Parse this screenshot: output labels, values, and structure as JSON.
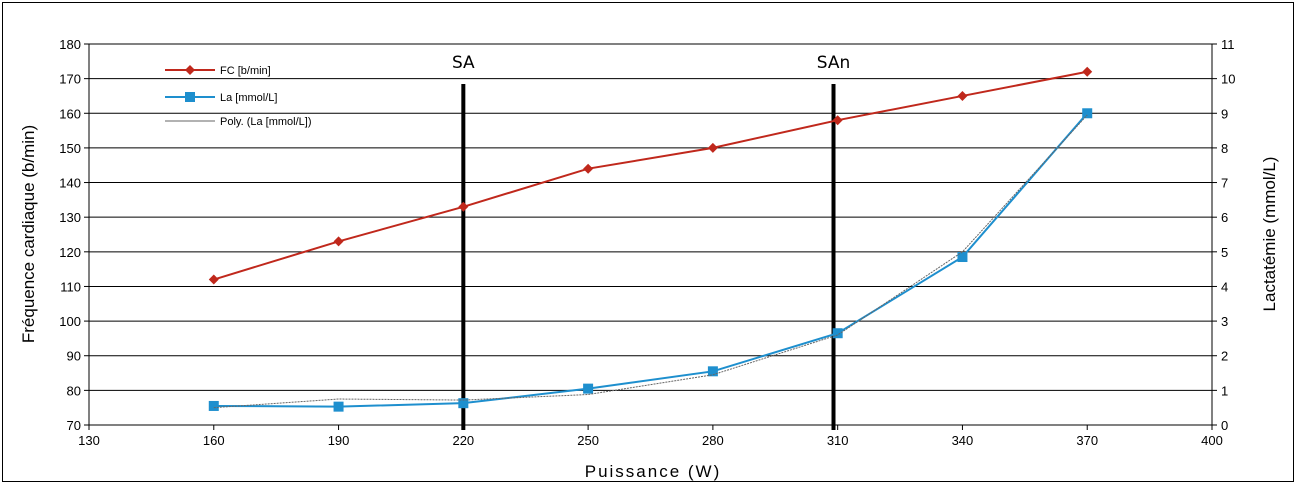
{
  "chart_data": {
    "type": "line",
    "xlabel": "Puissance (W)",
    "ylabel_left": "Fréquence cardiaque (b/min)",
    "ylabel_right": "Lactatémie (mmol/L)",
    "xlim": [
      130,
      400
    ],
    "ylim_left": [
      70,
      180
    ],
    "ylim_right": [
      0,
      11
    ],
    "x_ticks": [
      130,
      160,
      190,
      220,
      250,
      280,
      310,
      340,
      370,
      400
    ],
    "y_left_ticks": [
      70,
      80,
      90,
      100,
      110,
      120,
      130,
      140,
      150,
      160,
      170,
      180
    ],
    "y_right_ticks": [
      0,
      1,
      2,
      3,
      4,
      5,
      6,
      7,
      8,
      9,
      10,
      11
    ],
    "grid": "horizontal",
    "legend_position": "top-left",
    "series": [
      {
        "name": "FC [b/min]",
        "axis": "left",
        "color": "#C0281C",
        "marker": "diamond",
        "x": [
          160,
          190,
          220,
          250,
          280,
          310,
          340,
          370
        ],
        "y": [
          112,
          123,
          133,
          144,
          150,
          158,
          165,
          172
        ]
      },
      {
        "name": "La [mmol/L]",
        "axis": "right",
        "color": "#1E8FCE",
        "marker": "square",
        "x": [
          160,
          190,
          220,
          250,
          280,
          310,
          340,
          370
        ],
        "y": [
          0.55,
          0.53,
          0.63,
          1.05,
          1.55,
          2.65,
          4.85,
          9.0
        ]
      },
      {
        "name": "Poly. (La [mmol/L])",
        "axis": "right",
        "color": "#666666",
        "marker": "none",
        "trendline": "polynomial",
        "x": [
          160,
          190,
          220,
          250,
          280,
          310,
          340,
          370
        ],
        "y": [
          0.5,
          0.75,
          0.72,
          0.88,
          1.45,
          2.6,
          5.0,
          8.95
        ]
      }
    ],
    "vertical_markers": [
      {
        "label": "SA",
        "x": 220
      },
      {
        "label": "SAn",
        "x": 309
      }
    ]
  }
}
